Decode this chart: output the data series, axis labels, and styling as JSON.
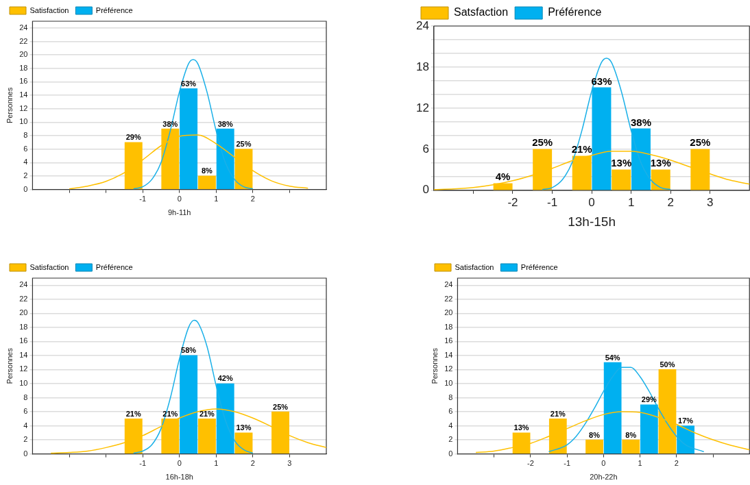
{
  "chart_data": [
    {
      "type": "bar",
      "xlabel": "9h-11h",
      "ylabel": "Personnes",
      "xlim": [
        -4,
        4
      ],
      "xticks": [
        {
          "value": -3,
          "label": null
        },
        {
          "value": -2,
          "label": null
        },
        -1,
        0,
        1,
        2,
        {
          "value": 3,
          "label": null
        }
      ],
      "ylim": [
        0,
        25
      ],
      "yticks": [
        0,
        2,
        4,
        6,
        8,
        10,
        12,
        14,
        16,
        18,
        20,
        22,
        24
      ],
      "grid": "y",
      "legend": "top left",
      "series": [
        {
          "name": "Satisfaction",
          "color": "#ffc000",
          "x": [
            -1.25,
            -0.25,
            0.75,
            1.75
          ],
          "values": [
            7,
            9,
            2,
            6
          ]
        },
        {
          "name": "Préférence",
          "color": "#00b0f0",
          "x": [
            0.25,
            1.25
          ],
          "values": [
            15,
            9
          ]
        },
        {
          "type": "line",
          "color": "#ffc000",
          "marker": "none",
          "x": [
            -3,
            -2.5,
            -2,
            -1.5,
            -1,
            -0.5,
            0,
            0.5,
            1,
            1.5,
            2,
            2.5,
            3,
            3.5
          ],
          "values": [
            0.1,
            0.5,
            1.2,
            2.5,
            4.4,
            6.5,
            7.9,
            8.1,
            6.8,
            4.8,
            2.8,
            1.3,
            0.5,
            0.2
          ]
        },
        {
          "type": "line",
          "color": "#1ab0e8",
          "marker": "none",
          "x": [
            -1.25,
            -1,
            -0.75,
            -0.5,
            -0.25,
            0,
            0.25,
            0.375,
            0.5,
            0.75,
            1,
            1.25,
            1.5,
            1.75,
            2
          ],
          "values": [
            0.1,
            0.4,
            1.5,
            4,
            8.7,
            14.5,
            18.7,
            19.3,
            18.7,
            14.5,
            8.7,
            4,
            1.5,
            0.4,
            0.1
          ]
        }
      ],
      "annotations": [
        {
          "text": "29%",
          "x": -1.25,
          "y": 7
        },
        {
          "text": "38%",
          "x": -0.25,
          "y": 9
        },
        {
          "text": "8%",
          "x": 0.75,
          "y": 2
        },
        {
          "text": "25%",
          "x": 1.75,
          "y": 6
        },
        {
          "text": "63%",
          "x": 0.25,
          "y": 15
        },
        {
          "text": "38%",
          "x": 1.25,
          "y": 9
        }
      ]
    },
    {
      "type": "bar",
      "xlabel": "13h-15h",
      "xlim": [
        -4,
        4
      ],
      "xticks": [
        {
          "value": -3,
          "label": null
        },
        -2,
        -1,
        0,
        1,
        2,
        3
      ],
      "ylim": [
        0,
        24
      ],
      "yticks": [
        0,
        {
          "value": 2,
          "label": null
        },
        {
          "value": 4,
          "label": null
        },
        6,
        {
          "value": 8,
          "label": null
        },
        {
          "value": 10,
          "label": null
        },
        12,
        {
          "value": 14,
          "label": null
        },
        {
          "value": 16,
          "label": null
        },
        18,
        {
          "value": 20,
          "label": null
        },
        {
          "value": 22,
          "label": null
        },
        24
      ],
      "grid": "y",
      "legend": "top left",
      "series": [
        {
          "name": "Satsfaction",
          "color": "#ffc000",
          "x": [
            -2.25,
            -1.25,
            -0.25,
            0.75,
            1.75,
            2.75
          ],
          "values": [
            1,
            6,
            5,
            3,
            3,
            6
          ]
        },
        {
          "name": "Préférence",
          "color": "#00b0f0",
          "x": [
            0.25,
            1.25
          ],
          "values": [
            15,
            9
          ]
        },
        {
          "type": "line",
          "color": "#ffc000",
          "marker": "none",
          "x": [
            -4,
            -3.5,
            -3,
            -2.5,
            -2,
            -1.5,
            -1,
            -0.5,
            0,
            0.5,
            1,
            1.5,
            2,
            2.5,
            3,
            3.5,
            4
          ],
          "values": [
            0.1,
            0.2,
            0.4,
            0.8,
            1.4,
            2.2,
            3.2,
            4.3,
            5.1,
            5.7,
            5.7,
            5.2,
            4.4,
            3.4,
            2.4,
            1.5,
            0.9
          ]
        },
        {
          "type": "line",
          "color": "#1ab0e8",
          "marker": "none",
          "x": [
            -1.25,
            -1,
            -0.75,
            -0.5,
            -0.25,
            0,
            0.25,
            0.375,
            0.5,
            0.75,
            1,
            1.25,
            1.5,
            1.75,
            2
          ],
          "values": [
            0.1,
            0.4,
            1.5,
            4,
            8.7,
            14.5,
            18.7,
            19.3,
            18.7,
            14.5,
            8.7,
            4,
            1.5,
            0.4,
            0.1
          ]
        }
      ],
      "annotations": [
        {
          "text": "4%",
          "x": -2.25,
          "y": 1
        },
        {
          "text": "25%",
          "x": -1.25,
          "y": 6
        },
        {
          "text": "21%",
          "x": -0.25,
          "y": 5
        },
        {
          "text": "13%",
          "x": 0.75,
          "y": 3
        },
        {
          "text": "13%",
          "x": 1.75,
          "y": 3
        },
        {
          "text": "25%",
          "x": 2.75,
          "y": 6
        },
        {
          "text": "63%",
          "x": 0.25,
          "y": 15
        },
        {
          "text": "38%",
          "x": 1.25,
          "y": 9
        }
      ]
    },
    {
      "type": "bar",
      "xlabel": "16h-18h",
      "ylabel": "Personnes",
      "xlim": [
        -4,
        4
      ],
      "xticks": [
        {
          "value": -3,
          "label": null
        },
        {
          "value": -2,
          "label": null
        },
        -1,
        0,
        1,
        2,
        3
      ],
      "ylim": [
        0,
        25
      ],
      "yticks": [
        0,
        2,
        4,
        6,
        8,
        10,
        12,
        14,
        16,
        18,
        20,
        22,
        24
      ],
      "grid": "y",
      "legend": "top left",
      "series": [
        {
          "name": "Satisfaction",
          "color": "#ffc000",
          "x": [
            -1.25,
            -0.25,
            0.75,
            1.75,
            2.75
          ],
          "values": [
            5,
            5,
            5,
            3,
            6
          ]
        },
        {
          "name": "Préférence",
          "color": "#00b0f0",
          "x": [
            0.25,
            1.25
          ],
          "values": [
            14,
            10
          ]
        },
        {
          "type": "line",
          "color": "#ffc000",
          "marker": "none",
          "x": [
            -3.5,
            -3,
            -2.5,
            -2,
            -1.5,
            -1,
            -0.5,
            0,
            0.5,
            1,
            1.5,
            2,
            2.5,
            3,
            3.5,
            4
          ],
          "values": [
            0.1,
            0.2,
            0.4,
            0.9,
            1.6,
            2.6,
            3.9,
            5.1,
            6,
            6.4,
            6,
            5.1,
            3.9,
            2.6,
            1.6,
            0.9
          ]
        },
        {
          "type": "line",
          "color": "#1ab0e8",
          "marker": "none",
          "x": [
            -1.25,
            -1,
            -0.75,
            -0.5,
            -0.25,
            0,
            0.25,
            0.4,
            0.5,
            0.75,
            1,
            1.25,
            1.5,
            1.75,
            2
          ],
          "values": [
            0.1,
            0.4,
            1.3,
            3.6,
            7.9,
            13.5,
            18,
            19,
            18.7,
            15.3,
            9.7,
            4.8,
            1.9,
            0.6,
            0.1
          ]
        }
      ],
      "annotations": [
        {
          "text": "21%",
          "x": -1.25,
          "y": 5
        },
        {
          "text": "21%",
          "x": -0.25,
          "y": 5
        },
        {
          "text": "21%",
          "x": 0.75,
          "y": 5
        },
        {
          "text": "13%",
          "x": 1.75,
          "y": 3
        },
        {
          "text": "25%",
          "x": 2.75,
          "y": 6
        },
        {
          "text": "58%",
          "x": 0.25,
          "y": 14
        },
        {
          "text": "42%",
          "x": 1.25,
          "y": 10
        }
      ]
    },
    {
      "type": "bar",
      "xlabel": "20h-22h",
      "ylabel": "Personnes",
      "xlim": [
        -4,
        4
      ],
      "xticks": [
        {
          "value": -3,
          "label": null
        },
        -2,
        -1,
        0,
        1,
        2,
        {
          "value": 3,
          "label": null
        }
      ],
      "ylim": [
        0,
        25
      ],
      "yticks": [
        0,
        2,
        4,
        6,
        8,
        10,
        12,
        14,
        16,
        18,
        20,
        22,
        24
      ],
      "grid": "y",
      "legend": "top left",
      "series": [
        {
          "name": "Satisfaction",
          "color": "#ffc000",
          "x": [
            -2.25,
            -1.25,
            -0.25,
            0.75,
            1.75
          ],
          "values": [
            3,
            5,
            2,
            2,
            12
          ]
        },
        {
          "name": "Préférence",
          "color": "#00b0f0",
          "x": [
            0.25,
            1.25,
            2.25
          ],
          "values": [
            13,
            7,
            4
          ]
        },
        {
          "type": "line",
          "color": "#ffc000",
          "marker": "none",
          "x": [
            -3.5,
            -3,
            -2.5,
            -2,
            -1.5,
            -1,
            -0.5,
            0,
            0.5,
            1,
            1.5,
            2,
            2.5,
            3,
            3.5,
            4
          ],
          "values": [
            0.2,
            0.4,
            0.9,
            1.5,
            2.5,
            3.6,
            4.7,
            5.6,
            6,
            5.9,
            5.2,
            4.2,
            3,
            2,
            1.2,
            0.6
          ]
        },
        {
          "type": "line",
          "color": "#1ab0e8",
          "marker": "none",
          "x": [
            -1.5,
            -1,
            -0.75,
            -0.5,
            -0.25,
            0,
            0.25,
            0.5,
            0.75,
            1,
            1.25,
            1.5,
            1.75,
            2,
            2.25,
            2.75
          ],
          "values": [
            0.3,
            1.3,
            2.5,
            4.3,
            6.5,
            8.9,
            11,
            12.3,
            12.3,
            11,
            8.9,
            6.5,
            4.3,
            2.5,
            1.3,
            0.3
          ]
        }
      ],
      "annotations": [
        {
          "text": "13%",
          "x": -2.25,
          "y": 3
        },
        {
          "text": "21%",
          "x": -1.25,
          "y": 5
        },
        {
          "text": "8%",
          "x": -0.25,
          "y": 2
        },
        {
          "text": "8%",
          "x": 0.75,
          "y": 2
        },
        {
          "text": "50%",
          "x": 1.75,
          "y": 12
        },
        {
          "text": "54%",
          "x": 0.25,
          "y": 13
        },
        {
          "text": "29%",
          "x": 1.25,
          "y": 7
        },
        {
          "text": "17%",
          "x": 2.25,
          "y": 4
        }
      ]
    }
  ]
}
